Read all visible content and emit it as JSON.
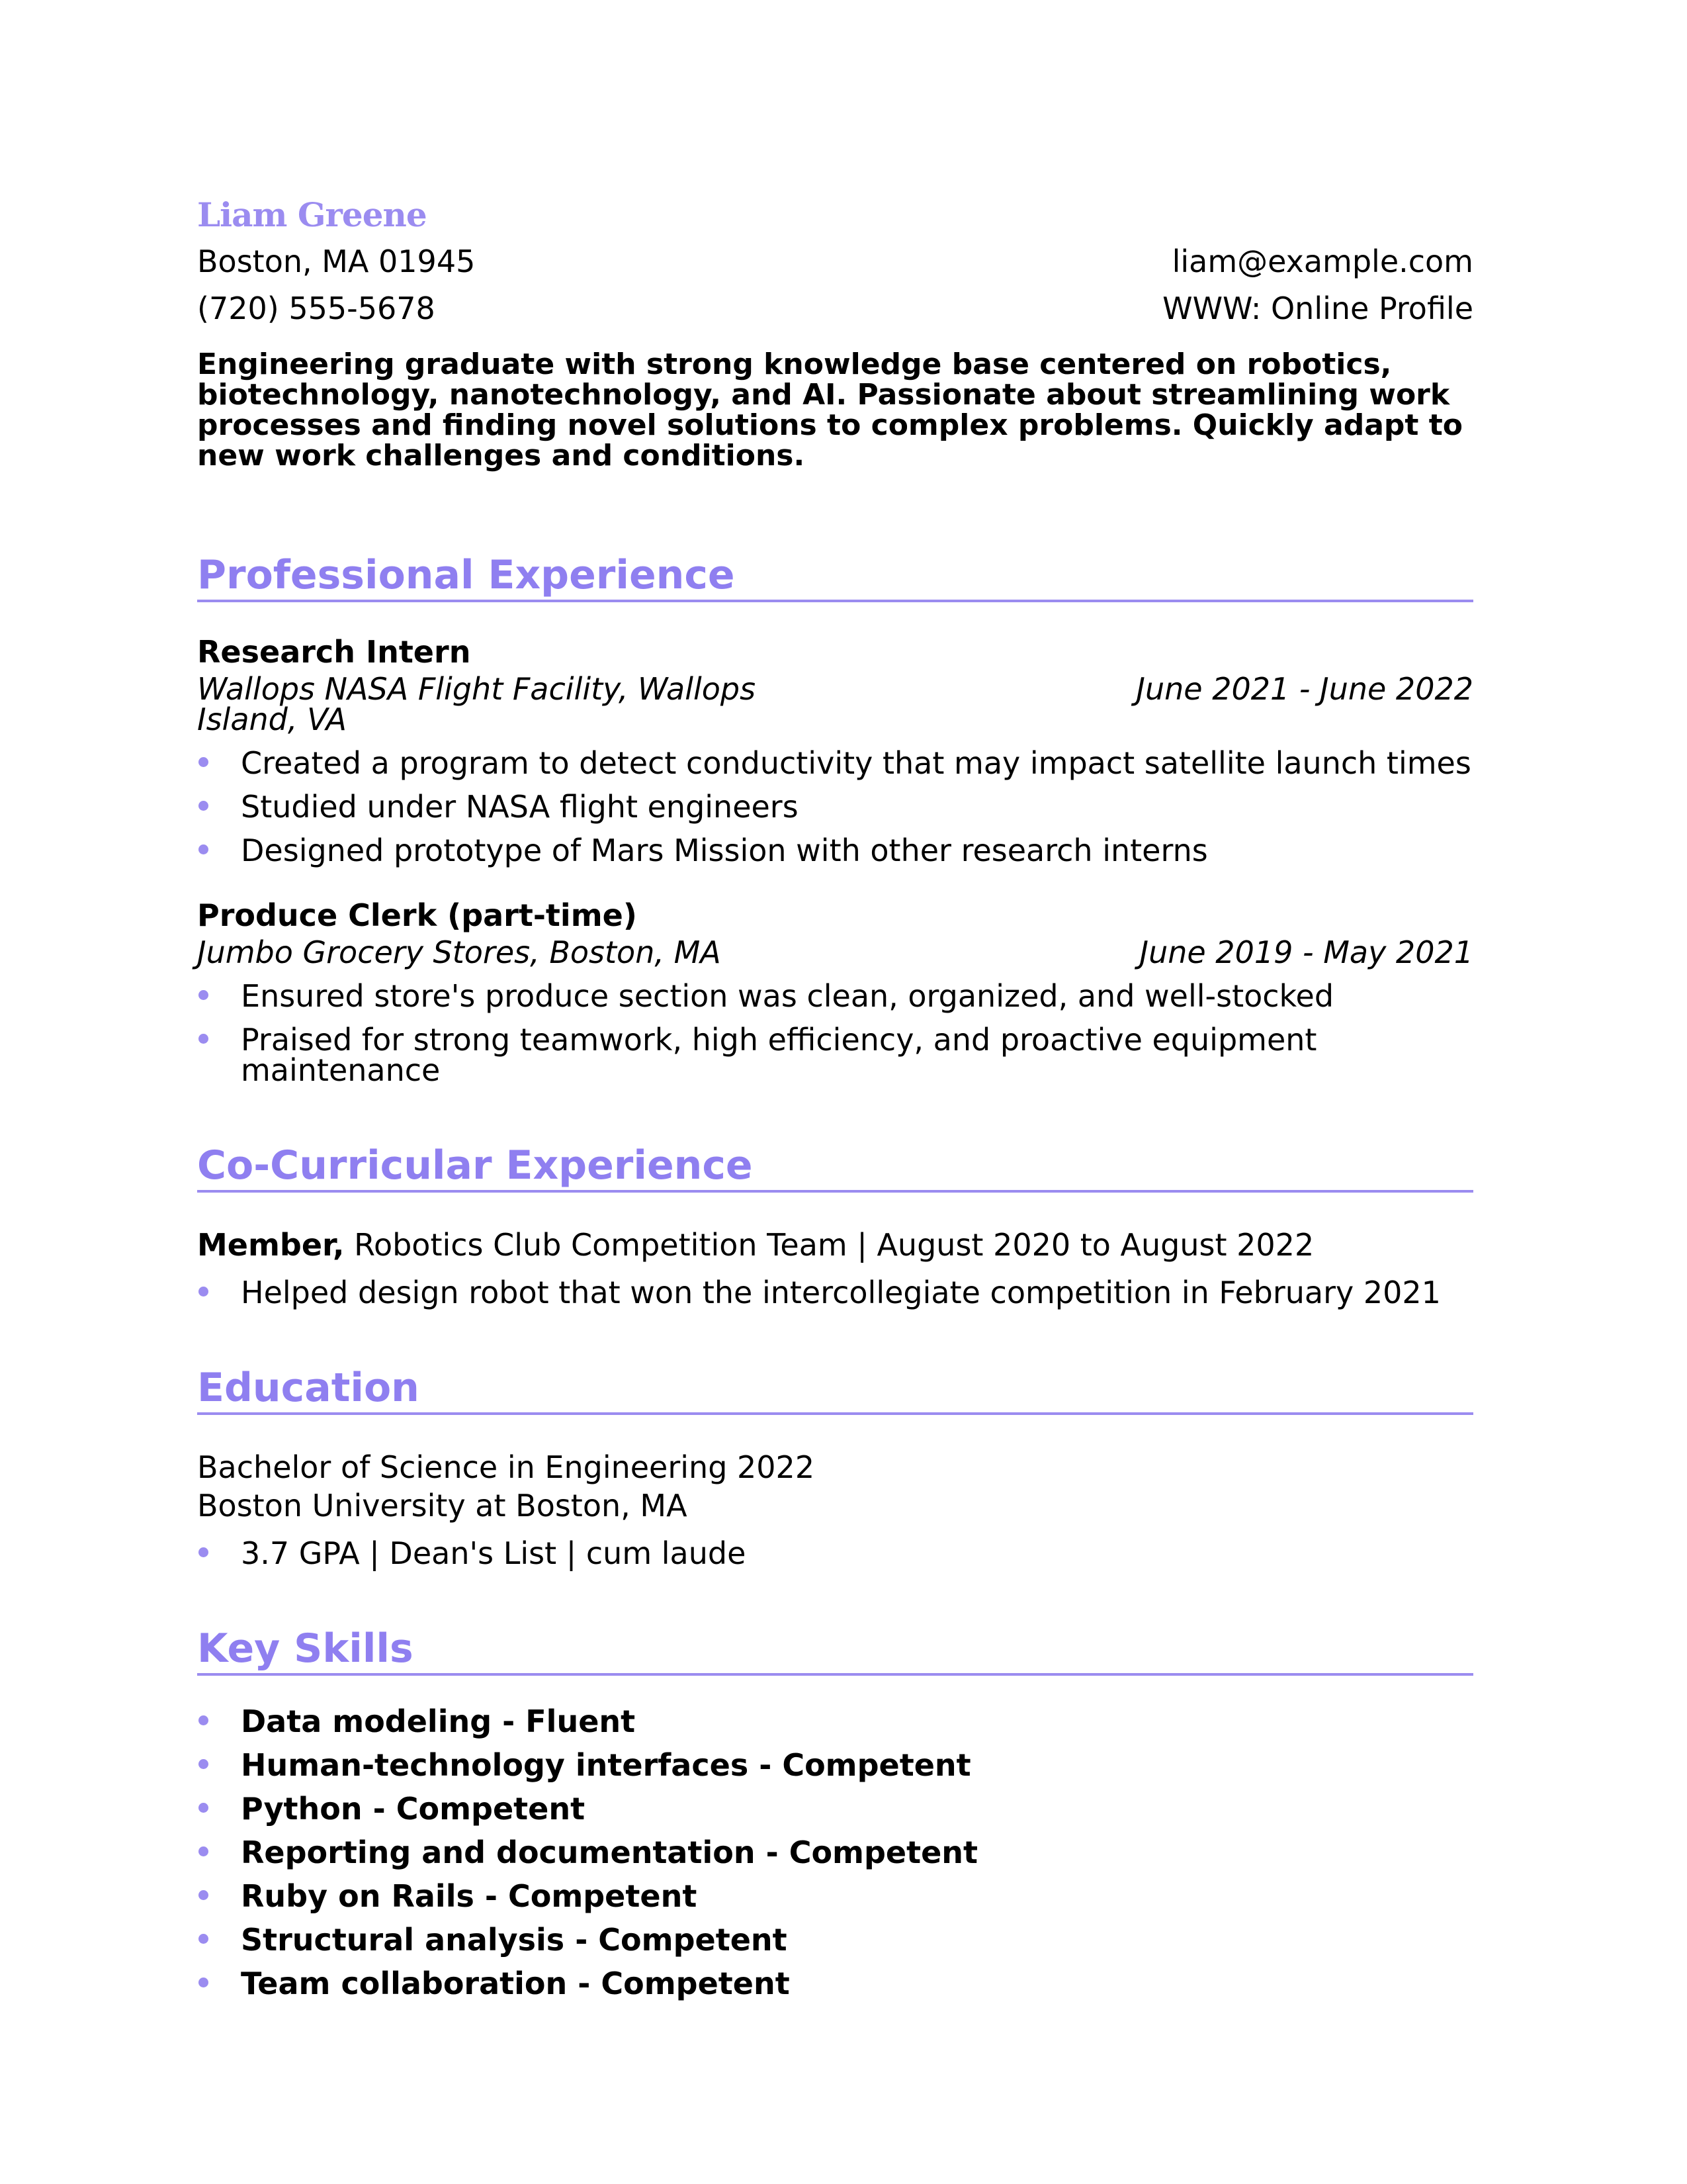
{
  "header": {
    "name": "Liam Greene",
    "address": "Boston, MA 01945",
    "email": "liam@example.com",
    "phone": "(720) 555-5678",
    "website": "WWW: Online Profile"
  },
  "summary": "Engineering graduate with strong knowledge base centered on robotics, biotechnology, nanotechnology, and AI. Passionate about streamlining work processes and finding novel solutions to complex problems. Quickly adapt to new work challenges and conditions.",
  "sections": [
    {
      "title": "Professional Experience",
      "entries": [
        {
          "title": "Research Intern",
          "org": "Wallops NASA Flight Facility, Wallops Island, VA",
          "dates": "June 2021 - June 2022",
          "bullets": [
            "Created a program to detect conductivity that may impact satellite launch times",
            "Studied under NASA flight engineers",
            "Designed prototype of Mars Mission with other research interns"
          ]
        },
        {
          "title": "Produce Clerk (part-time)",
          "org": "Jumbo Grocery Stores, Boston, MA",
          "dates": "June 2019 - May 2021",
          "bullets": [
            "Ensured store's produce section was clean, organized, and well-stocked",
            "Praised for strong teamwork, high efficiency, and proactive equipment maintenance"
          ]
        }
      ]
    },
    {
      "title": "Co-Curricular Experience",
      "entries": [
        {
          "role": "Member,",
          "detail": "Robotics Club Competition Team | August 2020 to August 2022",
          "bullets": [
            "Helped design robot that won the intercollegiate competition in February 2021"
          ]
        }
      ]
    },
    {
      "title": "Education",
      "entries": [
        {
          "degree": "Bachelor of Science in Engineering 2022",
          "school": "Boston University at Boston, MA",
          "bullets": [
            "3.7 GPA | Dean's List | cum laude"
          ]
        }
      ]
    },
    {
      "title": "Key Skills",
      "bullets": [
        "Data modeling - Fluent",
        "Human-technology interfaces - Competent",
        "Python - Competent",
        "Reporting and documentation - Competent",
        "Ruby on Rails - Competent",
        "Structural analysis - Competent",
        "Team collaboration - Competent"
      ]
    }
  ]
}
